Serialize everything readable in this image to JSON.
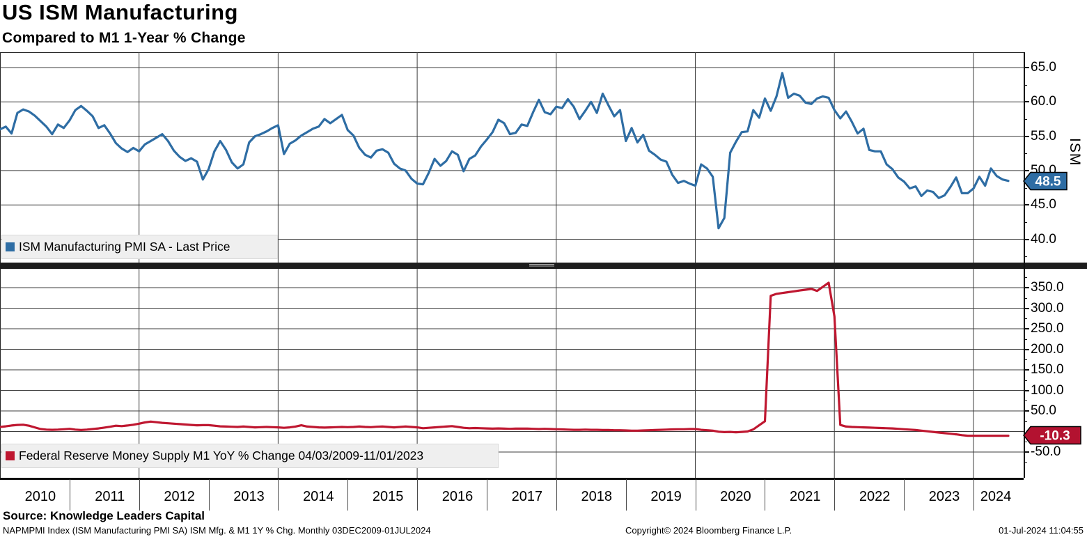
{
  "title": "US ISM Manufacturing",
  "subtitle": "Compared to M1 1-Year % Change",
  "colors": {
    "ism_line": "#2e6da4",
    "m1_line": "#bf1730",
    "ism_badge": "#2e6da4",
    "m1_badge": "#b31230",
    "grid": "#3c3c3c",
    "legend_bg": "#efefef"
  },
  "top_panel": {
    "legend_label": "ISM Manufacturing PMI SA - Last Price",
    "axis_label": "ISM",
    "last_value": "48.5",
    "y_ticks": [
      {
        "label": "65.0",
        "value": 65
      },
      {
        "label": "60.0",
        "value": 60
      },
      {
        "label": "55.0",
        "value": 55
      },
      {
        "label": "50.0",
        "value": 50
      },
      {
        "label": "45.0",
        "value": 45
      },
      {
        "label": "40.0",
        "value": 40
      }
    ],
    "y_minor_tick_values": [
      62.5,
      57.5,
      52.5,
      47.5,
      42.5,
      37.5
    ],
    "grid_values": [
      65,
      60,
      55,
      50,
      45,
      40
    ]
  },
  "bottom_panel": {
    "legend_label": "Federal Reserve Money Supply M1 YoY % Change 04/03/2009-11/01/2023",
    "last_value": "-10.3",
    "y_ticks": [
      {
        "label": "350.0",
        "value": 350
      },
      {
        "label": "300.0",
        "value": 300
      },
      {
        "label": "250.0",
        "value": 250
      },
      {
        "label": "200.0",
        "value": 200
      },
      {
        "label": "150.0",
        "value": 150
      },
      {
        "label": "100.0",
        "value": 100
      },
      {
        "label": "50.0",
        "value": 50
      },
      {
        "label": "-50.0",
        "value": -50
      }
    ],
    "y_minor_tick_values": [
      375,
      325,
      275,
      225,
      175,
      125,
      75,
      25,
      -25,
      -75
    ],
    "grid_values": [
      350,
      300,
      250,
      200,
      150,
      100,
      50,
      0,
      -50
    ]
  },
  "x_axis": {
    "year_labels": [
      "2010",
      "2011",
      "2012",
      "2013",
      "2014",
      "2015",
      "2016",
      "2017",
      "2018",
      "2019",
      "2020",
      "2021",
      "2022",
      "2023",
      "2024"
    ]
  },
  "footer": {
    "source": "Source: Knowledge Leaders Capital",
    "description": "NAPMPMI Index (ISM Manufacturing PMI SA) ISM Mfg. & M1 1Y % Chg.  Monthly 03DEC2009-01JUL2024",
    "copyright": "Copyright© 2024 Bloomberg Finance L.P.",
    "timestamp": "01-Jul-2024 11:04:55"
  },
  "chart_data": [
    {
      "type": "line",
      "name": "ISM Manufacturing PMI SA - Last Price",
      "panel": "top",
      "color": "#2e6da4",
      "start": "2009-12",
      "freq": "monthly",
      "axis": "right",
      "ylabel": "ISM",
      "ylim": [
        36.5,
        67.2
      ],
      "last": 48.5,
      "values": [
        56.0,
        56.4,
        55.4,
        58.4,
        58.9,
        58.6,
        58.0,
        57.2,
        56.4,
        55.3,
        56.7,
        56.2,
        57.3,
        58.8,
        59.4,
        58.7,
        57.9,
        56.2,
        56.6,
        55.4,
        54.0,
        53.2,
        52.7,
        53.3,
        52.8,
        53.8,
        54.3,
        54.8,
        55.3,
        54.3,
        52.9,
        52.0,
        51.4,
        51.8,
        51.3,
        48.7,
        50.2,
        52.8,
        54.3,
        53.0,
        51.2,
        50.3,
        50.9,
        54.1,
        55.0,
        55.3,
        55.7,
        56.2,
        56.6,
        52.4,
        53.9,
        54.4,
        55.1,
        55.6,
        56.1,
        56.4,
        57.5,
        56.9,
        57.5,
        58.1,
        55.9,
        55.1,
        53.3,
        52.3,
        51.9,
        52.9,
        53.1,
        52.6,
        51.0,
        50.3,
        50.0,
        48.8,
        48.1,
        48.0,
        49.7,
        51.7,
        50.7,
        51.4,
        52.8,
        52.3,
        49.9,
        51.7,
        52.2,
        53.5,
        54.5,
        55.6,
        57.4,
        56.9,
        55.3,
        55.5,
        56.7,
        56.5,
        58.5,
        60.3,
        58.5,
        58.2,
        59.3,
        59.1,
        60.4,
        59.3,
        57.5,
        58.7,
        60.0,
        58.4,
        61.2,
        59.5,
        57.9,
        58.8,
        54.3,
        56.2,
        54.1,
        55.2,
        52.9,
        52.3,
        51.6,
        51.3,
        49.4,
        48.2,
        48.5,
        48.1,
        47.8,
        50.9,
        50.3,
        49.1,
        41.6,
        43.1,
        52.6,
        54.2,
        55.6,
        55.7,
        58.8,
        57.7,
        60.5,
        58.7,
        60.8,
        64.2,
        60.6,
        61.2,
        60.9,
        59.9,
        59.7,
        60.5,
        60.8,
        60.6,
        58.8,
        57.6,
        58.6,
        57.1,
        55.4,
        56.1,
        53.0,
        52.8,
        52.8,
        50.9,
        50.2,
        49.0,
        48.4,
        47.4,
        47.7,
        46.3,
        47.1,
        46.9,
        46.0,
        46.4,
        47.6,
        49.0,
        46.7,
        46.7,
        47.4,
        49.1,
        47.8,
        50.3,
        49.2,
        48.7,
        48.5
      ]
    },
    {
      "type": "line",
      "name": "Federal Reserve Money Supply M1 YoY % Change",
      "panel": "bottom",
      "color": "#bf1730",
      "start": "2009-12",
      "freq": "monthly",
      "period_shown": "04/03/2009-11/01/2023",
      "axis": "right",
      "ylim": [
        -113,
        396
      ],
      "last": -10.3,
      "values": [
        11.0,
        12.5,
        14.5,
        16.0,
        16.5,
        14.0,
        10.0,
        6.0,
        4.5,
        4.0,
        4.5,
        5.5,
        6.5,
        4.5,
        3.5,
        4.5,
        6.0,
        7.5,
        9.5,
        11.5,
        14.0,
        13.0,
        14.5,
        16.5,
        19.0,
        22.0,
        24.0,
        22.5,
        21.0,
        20.0,
        19.0,
        18.0,
        17.0,
        16.0,
        15.0,
        15.5,
        15.5,
        14.0,
        12.5,
        12.0,
        11.5,
        11.0,
        12.0,
        11.0,
        10.0,
        10.5,
        11.0,
        10.5,
        10.0,
        9.0,
        10.0,
        12.0,
        15.0,
        12.0,
        11.0,
        10.0,
        9.5,
        10.0,
        10.5,
        11.0,
        10.5,
        11.0,
        12.0,
        11.0,
        10.5,
        11.5,
        12.0,
        11.0,
        10.0,
        11.0,
        12.0,
        11.0,
        10.0,
        8.0,
        9.0,
        10.0,
        11.0,
        12.0,
        13.0,
        11.0,
        9.0,
        8.0,
        8.5,
        8.0,
        7.5,
        7.0,
        7.5,
        7.0,
        6.5,
        7.0,
        7.0,
        7.0,
        6.5,
        6.0,
        6.5,
        6.0,
        5.5,
        5.0,
        4.5,
        4.0,
        4.0,
        4.5,
        4.0,
        4.0,
        3.5,
        3.5,
        3.0,
        3.0,
        2.5,
        2.0,
        2.0,
        2.5,
        3.0,
        3.5,
        4.0,
        4.5,
        5.0,
        5.5,
        5.5,
        6.0,
        6.0,
        4.0,
        3.0,
        2.0,
        -0.5,
        -1.5,
        -1.0,
        -2.0,
        -1.0,
        0.0,
        5.0,
        15.0,
        25.0,
        330.0,
        335.0,
        337.0,
        339.0,
        341.0,
        343.0,
        345.0,
        347.0,
        342.0,
        352.0,
        362.0,
        280.0,
        16.0,
        12.0,
        11.0,
        10.5,
        10.0,
        9.5,
        9.0,
        8.5,
        8.0,
        7.5,
        6.5,
        5.5,
        4.5,
        3.5,
        2.0,
        0.5,
        -1.0,
        -2.5,
        -4.0,
        -5.5,
        -7.0,
        -9.0,
        -10.3,
        -10.3,
        -10.3,
        -10.3,
        -10.3,
        -10.3,
        -10.3,
        -10.3
      ]
    }
  ],
  "x_range": "03DEC2009-01JUL2024"
}
